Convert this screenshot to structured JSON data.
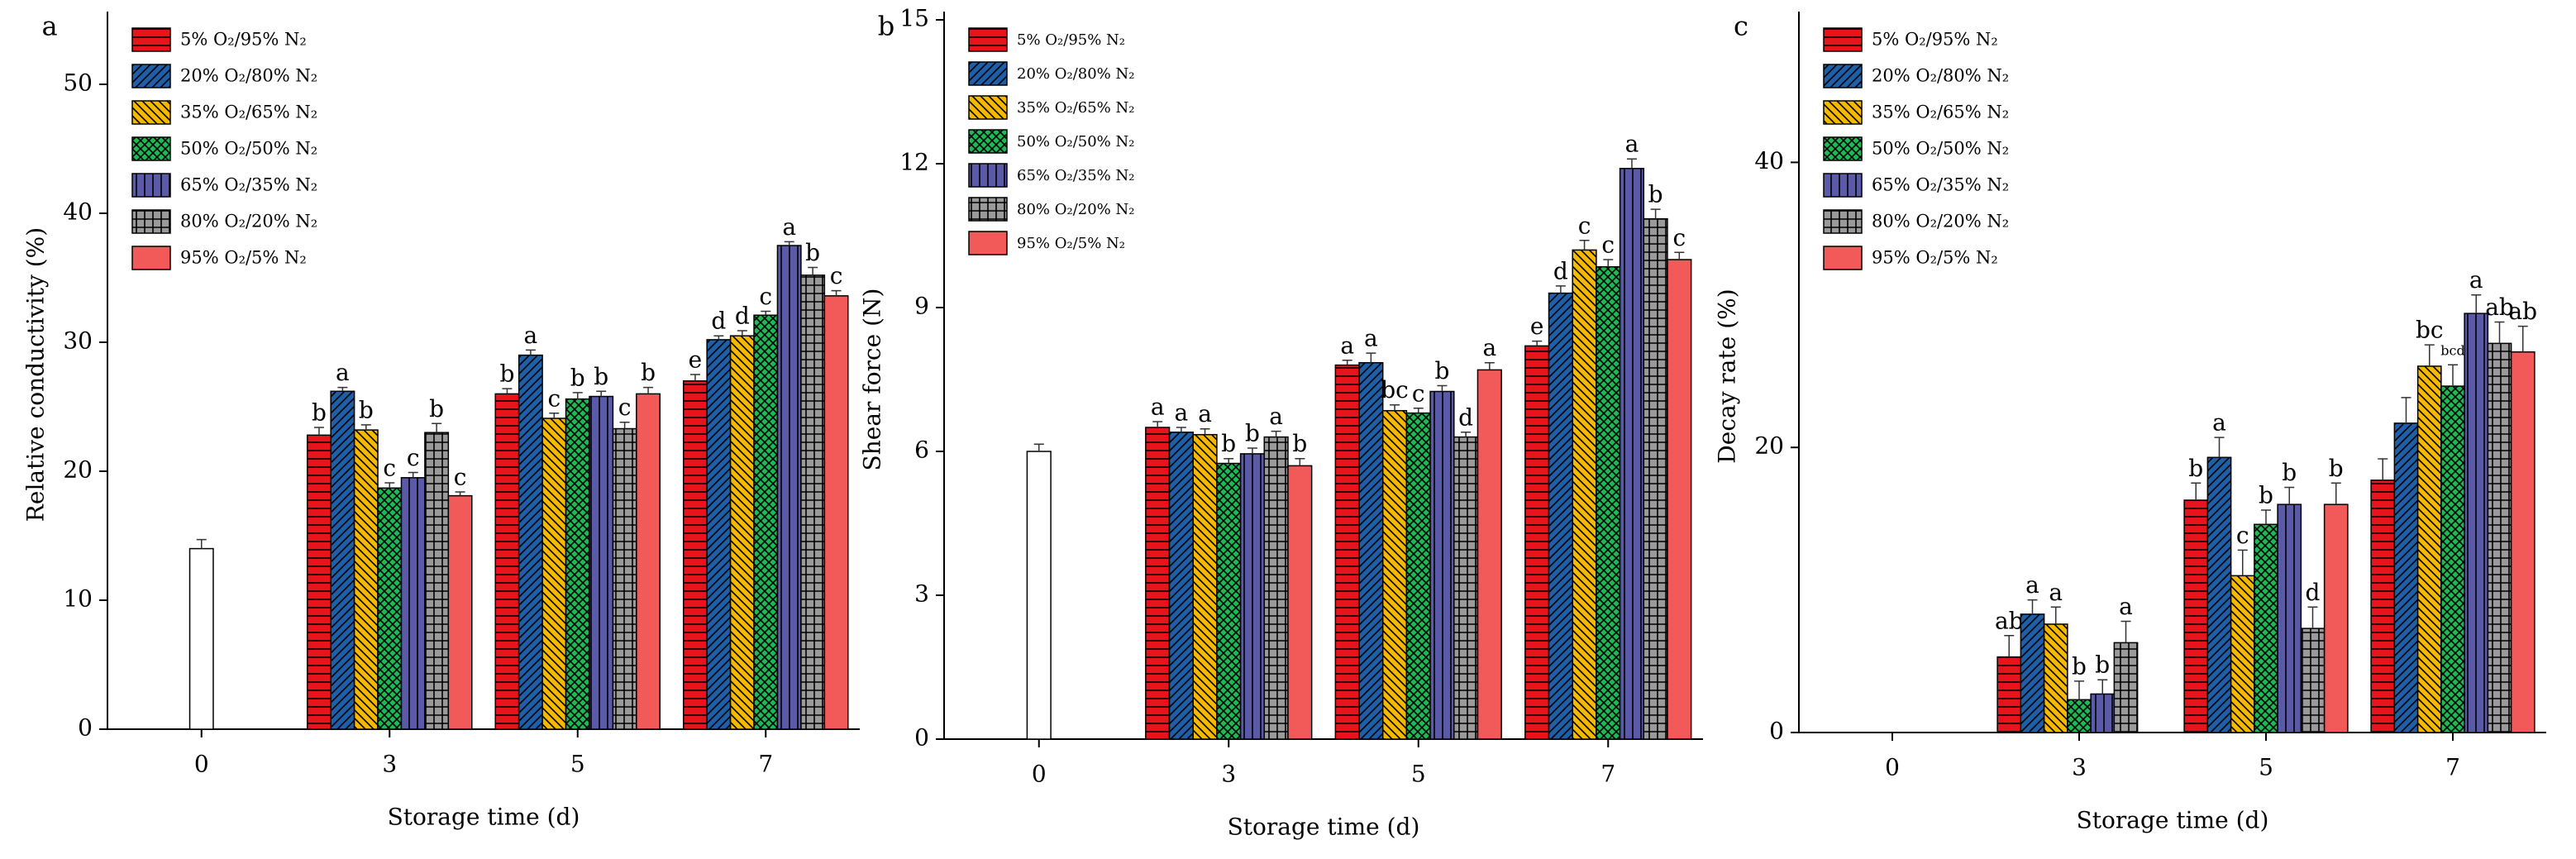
{
  "chart_data": [
    {
      "type": "bar",
      "panel_label": "a",
      "ylabel": "Relative conductivity (%)",
      "xlabel": "Storage time (d)",
      "categories": [
        "0",
        "3",
        "5",
        "7"
      ],
      "ylim": [
        0,
        55
      ],
      "yticks": [
        0,
        10,
        20,
        30,
        40,
        50
      ],
      "series": [
        {
          "color": "#ffffff",
          "pattern": "none",
          "values": [
            14.0,
            null,
            null,
            null
          ],
          "errors": [
            0.7,
            null,
            null,
            null
          ],
          "letters": [
            null,
            null,
            null,
            null
          ]
        },
        {
          "name": "5% O₂/95% N₂",
          "color": "#e8141c",
          "pattern": "hline",
          "values": [
            null,
            22.8,
            26.0,
            27.0
          ],
          "errors": [
            null,
            0.6,
            0.4,
            0.5
          ],
          "letters": [
            null,
            "b",
            "b",
            "e"
          ]
        },
        {
          "name": "20% O₂/80% N₂",
          "color": "#1f5fa8",
          "pattern": "fdiag",
          "values": [
            null,
            26.2,
            29.0,
            30.2
          ],
          "errors": [
            null,
            0.3,
            0.4,
            0.3
          ],
          "letters": [
            null,
            "a",
            "a",
            "d"
          ]
        },
        {
          "name": "35% O₂/65% N₂",
          "color": "#f5b800",
          "pattern": "bdiag",
          "values": [
            null,
            23.2,
            24.1,
            30.5
          ],
          "errors": [
            null,
            0.4,
            0.4,
            0.4
          ],
          "letters": [
            null,
            "b",
            "c",
            "d"
          ]
        },
        {
          "name": "50% O₂/50% N₂",
          "color": "#1db954",
          "pattern": "cross",
          "values": [
            null,
            18.7,
            25.6,
            32.1
          ],
          "errors": [
            null,
            0.4,
            0.5,
            0.3
          ],
          "letters": [
            null,
            "c",
            "b",
            "c"
          ]
        },
        {
          "name": "65% O₂/35% N₂",
          "color": "#5a5aa8",
          "pattern": "vline",
          "values": [
            null,
            19.5,
            25.8,
            37.5
          ],
          "errors": [
            null,
            0.4,
            0.4,
            0.3
          ],
          "letters": [
            null,
            "c",
            "b",
            "a"
          ]
        },
        {
          "name": "80% O₂/20% N₂",
          "color": "#9a9a9a",
          "pattern": "grid",
          "values": [
            null,
            23.0,
            23.3,
            35.2
          ],
          "errors": [
            null,
            0.7,
            0.5,
            0.6
          ],
          "letters": [
            null,
            "b",
            "c",
            "b"
          ]
        },
        {
          "name": "95% O₂/5% N₂",
          "color": "#f25a5a",
          "pattern": "none",
          "values": [
            null,
            18.1,
            26.0,
            33.6
          ],
          "errors": [
            null,
            0.3,
            0.5,
            0.4
          ],
          "letters": [
            null,
            "c",
            "b",
            "c"
          ]
        }
      ]
    },
    {
      "type": "bar",
      "panel_label": "b",
      "ylabel": "Shear force (N)",
      "xlabel": "Storage time (d)",
      "categories": [
        "0",
        "3",
        "5",
        "7"
      ],
      "ylim": [
        0,
        15
      ],
      "yticks": [
        0,
        3,
        6,
        9,
        12,
        15
      ],
      "series": [
        {
          "color": "#ffffff",
          "pattern": "none",
          "values": [
            6.0,
            null,
            null,
            null
          ],
          "errors": [
            0.15,
            null,
            null,
            null
          ],
          "letters": [
            null,
            null,
            null,
            null
          ]
        },
        {
          "name": "5% O₂/95% N₂",
          "color": "#e8141c",
          "pattern": "hline",
          "values": [
            null,
            6.5,
            7.8,
            8.2
          ],
          "errors": [
            null,
            0.12,
            0.1,
            0.1
          ],
          "letters": [
            null,
            "a",
            "a",
            "e"
          ]
        },
        {
          "name": "20% O₂/80% N₂",
          "color": "#1f5fa8",
          "pattern": "fdiag",
          "values": [
            null,
            6.4,
            7.85,
            9.3
          ],
          "errors": [
            null,
            0.1,
            0.2,
            0.15
          ],
          "letters": [
            null,
            "a",
            "a",
            "d"
          ]
        },
        {
          "name": "35% O₂/65% N₂",
          "color": "#f5b800",
          "pattern": "bdiag",
          "values": [
            null,
            6.35,
            6.85,
            10.2
          ],
          "errors": [
            null,
            0.12,
            0.12,
            0.2
          ],
          "letters": [
            null,
            "a",
            "bc",
            "c"
          ]
        },
        {
          "name": "50% O₂/50% N₂",
          "color": "#1db954",
          "pattern": "cross",
          "values": [
            null,
            5.75,
            6.8,
            9.85
          ],
          "errors": [
            null,
            0.1,
            0.1,
            0.15
          ],
          "letters": [
            null,
            "b",
            "c",
            "c"
          ]
        },
        {
          "name": "65% O₂/35% N₂",
          "color": "#5a5aa8",
          "pattern": "vline",
          "values": [
            null,
            5.95,
            7.25,
            11.9
          ],
          "errors": [
            null,
            0.12,
            0.12,
            0.2
          ],
          "letters": [
            null,
            "b",
            "b",
            "a"
          ]
        },
        {
          "name": "80% O₂/20% N₂",
          "color": "#9a9a9a",
          "pattern": "grid",
          "values": [
            null,
            6.3,
            6.3,
            10.85
          ],
          "errors": [
            null,
            0.12,
            0.1,
            0.2
          ],
          "letters": [
            null,
            "a",
            "d",
            "b"
          ]
        },
        {
          "name": "95% O₂/5% N₂",
          "color": "#f25a5a",
          "pattern": "none",
          "values": [
            null,
            5.7,
            7.7,
            10.0
          ],
          "errors": [
            null,
            0.15,
            0.15,
            0.15
          ],
          "letters": [
            null,
            "b",
            "a",
            "c"
          ]
        }
      ]
    },
    {
      "type": "bar",
      "panel_label": "c",
      "ylabel": "Decay rate (%)",
      "xlabel": "Storage time (d)",
      "categories": [
        "0",
        "3",
        "5",
        "7"
      ],
      "ylim": [
        0,
        50
      ],
      "yticks": [
        0,
        20,
        40
      ],
      "series": [
        {
          "name": "5% O₂/95% N₂",
          "color": "#e8141c",
          "pattern": "hline",
          "values": [
            null,
            5.3,
            16.3,
            17.7
          ],
          "errors": [
            null,
            1.5,
            1.2,
            1.5
          ],
          "letters": [
            null,
            "ab",
            "b",
            null
          ]
        },
        {
          "name": "20% O₂/80% N₂",
          "color": "#1f5fa8",
          "pattern": "fdiag",
          "values": [
            null,
            8.3,
            19.3,
            21.7
          ],
          "errors": [
            null,
            1.0,
            1.4,
            1.8
          ],
          "letters": [
            null,
            "a",
            "a",
            null
          ]
        },
        {
          "name": "35% O₂/65% N₂",
          "color": "#f5b800",
          "pattern": "bdiag",
          "values": [
            null,
            7.6,
            11.0,
            25.7
          ],
          "errors": [
            null,
            1.2,
            1.8,
            1.5
          ],
          "letters": [
            null,
            "a",
            "c",
            "bc"
          ]
        },
        {
          "name": "50% O₂/50% N₂",
          "color": "#1db954",
          "pattern": "cross",
          "values": [
            null,
            2.3,
            14.6,
            24.3
          ],
          "errors": [
            null,
            1.3,
            1.0,
            1.5
          ],
          "letters": [
            null,
            "b",
            "b",
            "bcd"
          ]
        },
        {
          "name": "65% O₂/35% N₂",
          "color": "#5a5aa8",
          "pattern": "vline",
          "values": [
            null,
            2.7,
            16.0,
            29.4
          ],
          "errors": [
            null,
            1.0,
            1.2,
            1.3
          ],
          "letters": [
            null,
            "b",
            "b",
            "a"
          ]
        },
        {
          "name": "80% O₂/20% N₂",
          "color": "#9a9a9a",
          "pattern": "grid",
          "values": [
            null,
            6.3,
            7.3,
            27.3
          ],
          "errors": [
            null,
            1.5,
            1.5,
            1.5
          ],
          "letters": [
            null,
            "a",
            "d",
            "ab"
          ]
        },
        {
          "name": "95% O₂/5% N₂",
          "color": "#f25a5a",
          "pattern": "none",
          "values": [
            null,
            null,
            16.0,
            26.7
          ],
          "errors": [
            null,
            null,
            1.5,
            1.8
          ],
          "letters": [
            null,
            null,
            "b",
            "ab"
          ]
        }
      ]
    }
  ]
}
